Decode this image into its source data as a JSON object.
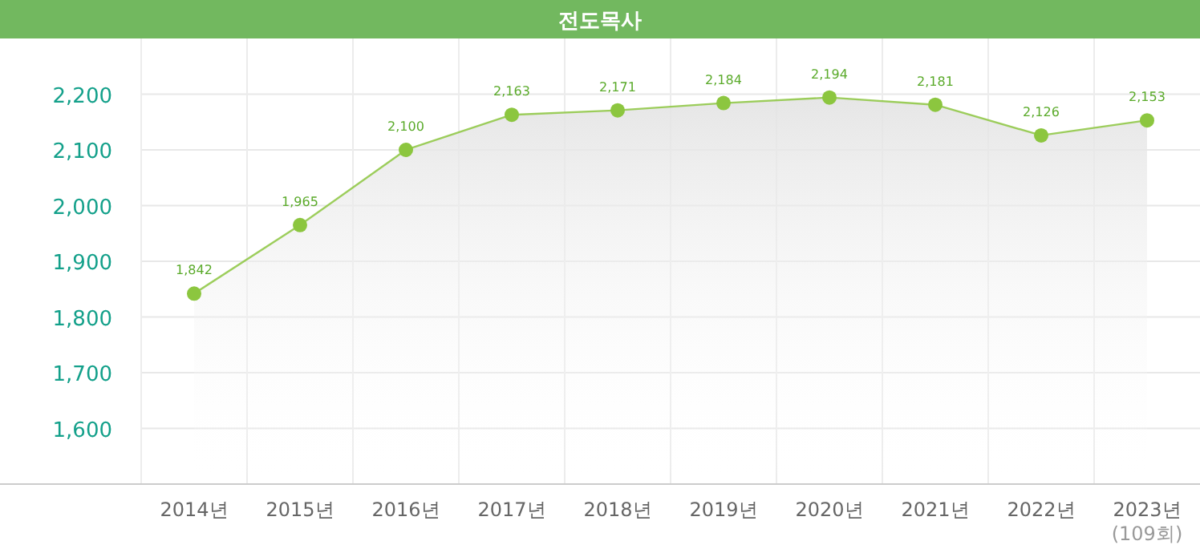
{
  "chart_data": {
    "type": "area",
    "title": "전도목사",
    "categories": [
      "2014년",
      "2015년",
      "2016년",
      "2017년",
      "2018년",
      "2019년",
      "2020년",
      "2021년",
      "2022년",
      "2023년\n(109회)"
    ],
    "values": [
      1842,
      1965,
      2100,
      2163,
      2171,
      2184,
      2194,
      2181,
      2126,
      2153
    ],
    "color": "#8cc63f",
    "ylim": [
      1500,
      2300
    ],
    "yticks": [
      {
        "value": 1600,
        "label": "1,600"
      },
      {
        "value": 1700,
        "label": "1,700"
      },
      {
        "value": 1800,
        "label": "1,800"
      },
      {
        "value": 1900,
        "label": "1,900"
      },
      {
        "value": 2000,
        "label": "2,000"
      },
      {
        "value": 2100,
        "label": "2,100"
      },
      {
        "value": 2200,
        "label": "2,200"
      }
    ],
    "value_labels": [
      "1,842",
      "1,965",
      "2,100",
      "2,163",
      "2,171",
      "2,184",
      "2,194",
      "2,181",
      "2,126",
      "2,153"
    ],
    "grid": true,
    "marker": "circle"
  }
}
